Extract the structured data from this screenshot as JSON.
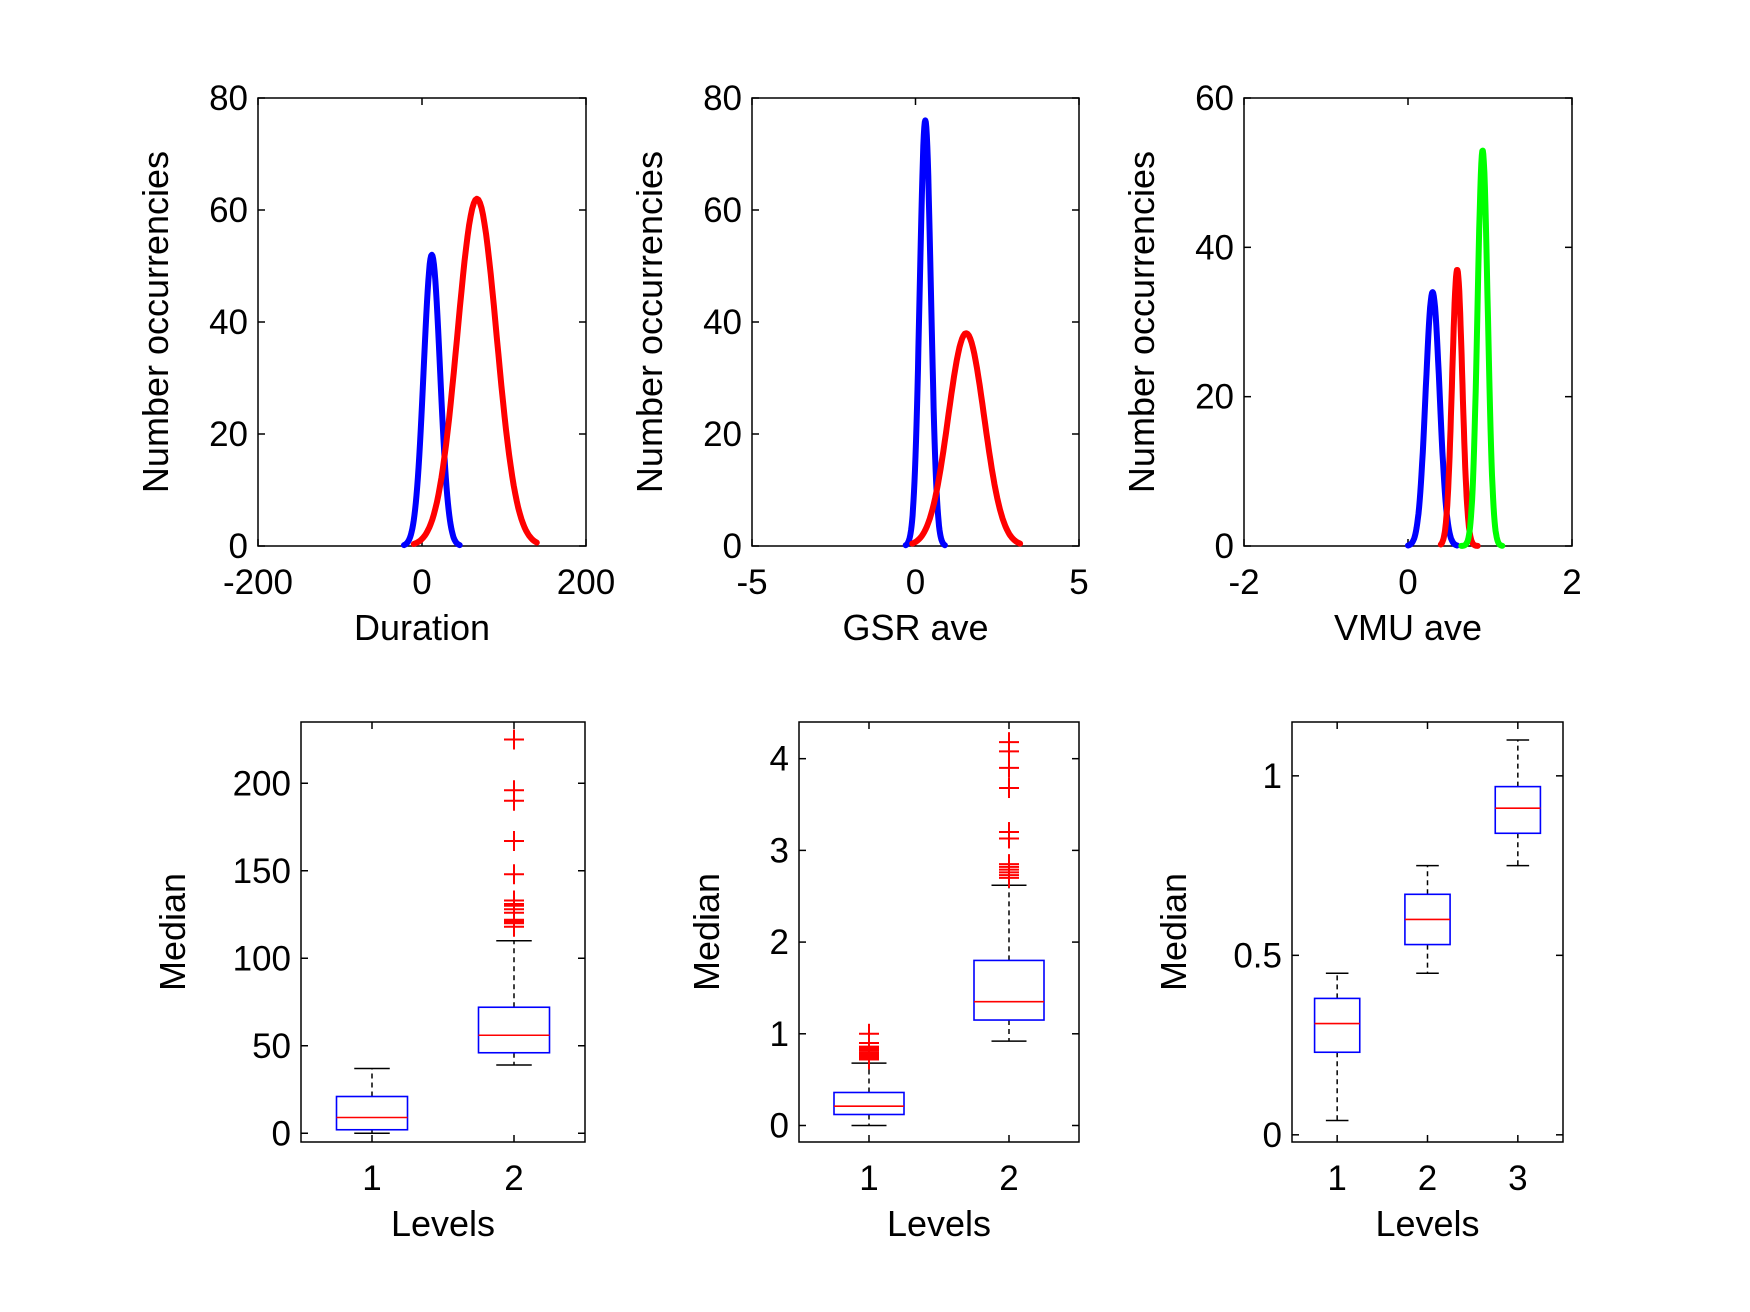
{
  "colors": {
    "blue": "#0000ff",
    "red": "#ff0000",
    "green": "#00ff00",
    "black": "#000000"
  },
  "chart_data": [
    {
      "type": "line",
      "subtype": "gaussian-density-curves",
      "xlabel": "Duration",
      "ylabel": "Number occurrencies",
      "xlim": [
        -200,
        200
      ],
      "ylim": [
        0,
        80
      ],
      "xticks": [
        "-200",
        "0",
        "200"
      ],
      "yticks": [
        "0",
        "20",
        "40",
        "60",
        "80"
      ],
      "series": [
        {
          "color": "blue",
          "mean": 12,
          "sd": 10,
          "peak": 52,
          "x_range": [
            -22,
            46
          ]
        },
        {
          "color": "red",
          "mean": 67,
          "sd": 24,
          "peak": 62,
          "x_range": [
            -10,
            140
          ]
        }
      ]
    },
    {
      "type": "line",
      "subtype": "gaussian-density-curves",
      "xlabel": "GSR ave",
      "ylabel": "Number occurrencies",
      "xlim": [
        -5,
        5
      ],
      "ylim": [
        0,
        80
      ],
      "xticks": [
        "-5",
        "0",
        "5"
      ],
      "yticks": [
        "0",
        "20",
        "40",
        "60",
        "80"
      ],
      "series": [
        {
          "color": "blue",
          "mean": 0.3,
          "sd": 0.17,
          "peak": 76,
          "x_range": [
            -0.3,
            0.9
          ]
        },
        {
          "color": "red",
          "mean": 1.55,
          "sd": 0.55,
          "peak": 38,
          "x_range": [
            -0.1,
            3.2
          ]
        }
      ]
    },
    {
      "type": "line",
      "subtype": "gaussian-density-curves",
      "xlabel": "VMU ave",
      "ylabel": "Number occurrencies",
      "xlim": [
        -2,
        2
      ],
      "ylim": [
        0,
        60
      ],
      "xticks": [
        "-2",
        "0",
        "2"
      ],
      "yticks": [
        "0",
        "20",
        "40",
        "60"
      ],
      "series": [
        {
          "color": "blue",
          "mean": 0.3,
          "sd": 0.085,
          "peak": 34,
          "x_range": [
            0.0,
            0.6
          ]
        },
        {
          "color": "red",
          "mean": 0.6,
          "sd": 0.062,
          "peak": 37,
          "x_range": [
            0.4,
            0.85
          ]
        },
        {
          "color": "green",
          "mean": 0.91,
          "sd": 0.062,
          "peak": 53,
          "x_range": [
            0.65,
            1.15
          ]
        }
      ]
    },
    {
      "type": "boxplot",
      "xlabel": "Levels",
      "ylabel": "Median",
      "xlim": [
        0.5,
        2.5
      ],
      "ylim": [
        -5,
        235
      ],
      "xticks": [
        "1",
        "2"
      ],
      "yticks": [
        "0",
        "50",
        "100",
        "150",
        "200"
      ],
      "boxes": [
        {
          "level": 1,
          "q1": 2,
          "median": 9,
          "q3": 21,
          "whisker_low": 0,
          "whisker_high": 37,
          "outliers": []
        },
        {
          "level": 2,
          "q1": 46,
          "median": 56,
          "q3": 72,
          "whisker_low": 39,
          "whisker_high": 110,
          "outliers": [
            225,
            196,
            190,
            167,
            148,
            133,
            131,
            130,
            128,
            126,
            122,
            121,
            120,
            118
          ]
        }
      ]
    },
    {
      "type": "boxplot",
      "xlabel": "Levels",
      "ylabel": "Median",
      "xlim": [
        0.5,
        2.5
      ],
      "ylim": [
        -0.18,
        4.4
      ],
      "xticks": [
        "1",
        "2"
      ],
      "yticks": [
        "0",
        "1",
        "2",
        "3",
        "4"
      ],
      "boxes": [
        {
          "level": 1,
          "q1": 0.12,
          "median": 0.21,
          "q3": 0.36,
          "whisker_low": 0.0,
          "whisker_high": 0.68,
          "outliers": [
            1.0,
            0.9,
            0.86,
            0.84,
            0.82,
            0.8,
            0.79,
            0.78,
            0.76,
            0.75,
            0.74,
            0.72
          ]
        },
        {
          "level": 2,
          "q1": 1.15,
          "median": 1.35,
          "q3": 1.8,
          "whisker_low": 0.92,
          "whisker_high": 2.62,
          "outliers": [
            4.18,
            4.08,
            3.9,
            3.68,
            3.2,
            3.13,
            2.85,
            2.82,
            2.79,
            2.76,
            2.73,
            2.7
          ]
        }
      ]
    },
    {
      "type": "boxplot",
      "xlabel": "Levels",
      "ylabel": "Median",
      "xlim": [
        0.5,
        3.5
      ],
      "ylim": [
        -0.02,
        1.15
      ],
      "xticks": [
        "1",
        "2",
        "3"
      ],
      "yticks": [
        "0",
        "0.5",
        "1"
      ],
      "boxes": [
        {
          "level": 1,
          "q1": 0.23,
          "median": 0.31,
          "q3": 0.38,
          "whisker_low": 0.04,
          "whisker_high": 0.45,
          "outliers": []
        },
        {
          "level": 2,
          "q1": 0.53,
          "median": 0.6,
          "q3": 0.67,
          "whisker_low": 0.45,
          "whisker_high": 0.75,
          "outliers": []
        },
        {
          "level": 3,
          "q1": 0.84,
          "median": 0.91,
          "q3": 0.97,
          "whisker_low": 0.75,
          "whisker_high": 1.1,
          "outliers": []
        }
      ]
    }
  ]
}
